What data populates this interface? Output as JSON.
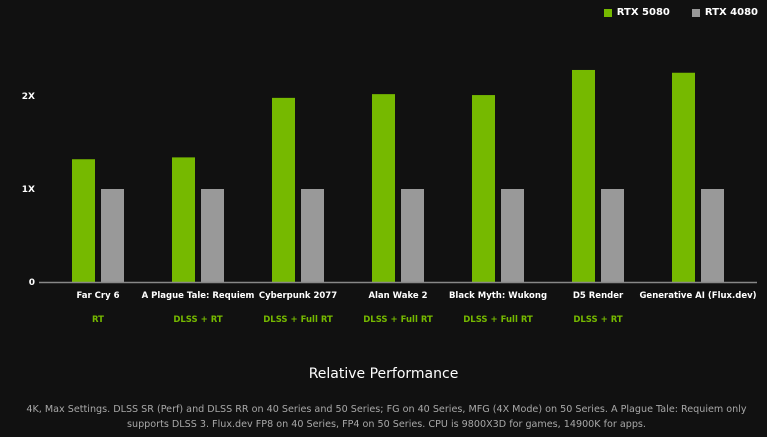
{
  "chart_data": {
    "type": "bar",
    "title": "Relative Performance",
    "categories": [
      "Far Cry 6",
      "A Plague Tale: Requiem",
      "Cyberpunk 2077",
      "Alan Wake 2",
      "Black Myth: Wukong",
      "D5 Render",
      "Generative AI (Flux.dev)"
    ],
    "sublabels": [
      "RT",
      "DLSS + RT",
      "DLSS + Full RT",
      "DLSS + Full RT",
      "DLSS + Full RT",
      "DLSS + RT",
      ""
    ],
    "series": [
      {
        "name": "RTX 5080",
        "color": "#76b900",
        "values": [
          1.32,
          1.34,
          1.98,
          2.02,
          2.01,
          2.28,
          2.25
        ]
      },
      {
        "name": "RTX 4080",
        "color": "#999999",
        "values": [
          1,
          1,
          1,
          1,
          1,
          1,
          1
        ]
      }
    ],
    "yticks": [
      {
        "value": 0,
        "label": "0"
      },
      {
        "value": 1,
        "label": "1X"
      },
      {
        "value": 2,
        "label": "2X"
      }
    ],
    "ylim": [
      0,
      2.4
    ],
    "grid": false,
    "legend": "top-right",
    "sublabel_color": "#76b900"
  },
  "footnote": "4K, Max Settings. DLSS SR (Perf) and DLSS RR on 40 Series and 50 Series; FG on 40 Series, MFG (4X Mode) on 50 Series. A Plague Tale: Requiem only supports DLSS 3. Flux.dev FP8 on 40 Series, FP4 on 50 Series. CPU is 9800X3D for games, 14900K for apps."
}
